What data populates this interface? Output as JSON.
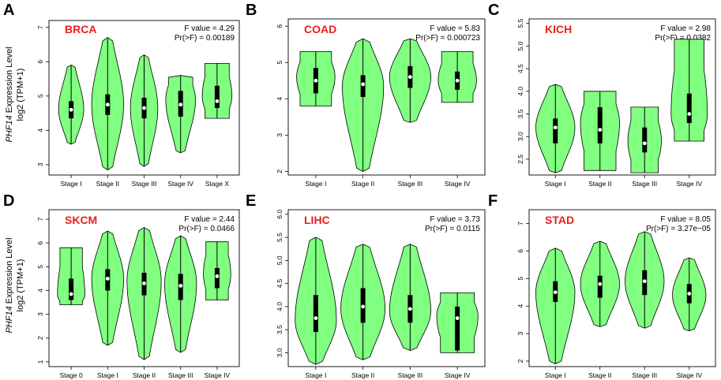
{
  "figure": {
    "ylabel_gene": "PHF14",
    "ylabel_rest": " Expression Level",
    "ylabel_line2": "log2 (TPM+1)",
    "violin_color": "#80ff80",
    "title_color": "#e8201c"
  },
  "chart_data": [
    {
      "type": "violin",
      "letter": "A",
      "title": "BRCA",
      "f_value": "F value = 4.29",
      "p_value": "Pr(>F) = 0.00189",
      "ylabel": "PHF14 Expression Level log2 (TPM+1)",
      "ylim": [
        2.7,
        7.2
      ],
      "yticks": [
        {
          "v": 3,
          "label": "3"
        },
        {
          "v": 4,
          "label": "4"
        },
        {
          "v": 5,
          "label": "5"
        },
        {
          "v": 6,
          "label": "6"
        },
        {
          "v": 7,
          "label": "7"
        }
      ],
      "categories": [
        "Stage I",
        "Stage II",
        "Stage III",
        "Stage IV",
        "Stage X"
      ],
      "violins": [
        {
          "min": 3.6,
          "max": 5.9,
          "q1": 4.35,
          "median": 4.6,
          "q3": 4.85,
          "mode": 4.6,
          "width": 0.55
        },
        {
          "min": 2.85,
          "max": 6.7,
          "q1": 4.45,
          "median": 4.75,
          "q3": 5.05,
          "mode": 4.75,
          "width": 0.7
        },
        {
          "min": 2.95,
          "max": 6.2,
          "q1": 4.35,
          "median": 4.65,
          "q3": 4.95,
          "mode": 4.65,
          "width": 0.6
        },
        {
          "min": 3.35,
          "max": 5.6,
          "q1": 4.4,
          "median": 4.75,
          "q3": 5.15,
          "mode": 4.9,
          "width": 0.65,
          "flat": "top"
        },
        {
          "min": 4.35,
          "max": 5.95,
          "q1": 4.65,
          "median": 4.85,
          "q3": 5.3,
          "mode": 5.0,
          "width": 0.65,
          "flat": "both"
        }
      ]
    },
    {
      "type": "violin",
      "letter": "B",
      "title": "COAD",
      "f_value": "F value = 5.83",
      "p_value": "Pr(>F) = 0.000723",
      "ylim": [
        1.9,
        6.2
      ],
      "yticks": [
        {
          "v": 2,
          "label": "2"
        },
        {
          "v": 3,
          "label": "3"
        },
        {
          "v": 4,
          "label": "4"
        },
        {
          "v": 5,
          "label": "5"
        },
        {
          "v": 6,
          "label": "6"
        }
      ],
      "categories": [
        "Stage I",
        "Stage II",
        "Stage III",
        "Stage IV"
      ],
      "violins": [
        {
          "min": 3.8,
          "max": 5.3,
          "q1": 4.15,
          "median": 4.5,
          "q3": 4.85,
          "mode": 4.6,
          "width": 0.65,
          "flat": "both"
        },
        {
          "min": 2.0,
          "max": 5.65,
          "q1": 4.05,
          "median": 4.4,
          "q3": 4.65,
          "mode": 4.35,
          "width": 0.7
        },
        {
          "min": 3.35,
          "max": 5.65,
          "q1": 4.3,
          "median": 4.6,
          "q3": 4.9,
          "mode": 4.6,
          "width": 0.7
        },
        {
          "min": 3.9,
          "max": 5.3,
          "q1": 4.25,
          "median": 4.5,
          "q3": 4.75,
          "mode": 4.5,
          "width": 0.65,
          "flat": "both"
        }
      ]
    },
    {
      "type": "violin",
      "letter": "C",
      "title": "KICH",
      "f_value": "F value = 2.98",
      "p_value": "Pr(>F) = 0.0382",
      "ylim": [
        2.15,
        5.6
      ],
      "yticks": [
        {
          "v": 2.5,
          "label": "2.5"
        },
        {
          "v": 3.0,
          "label": "3.0"
        },
        {
          "v": 3.5,
          "label": "3.5"
        },
        {
          "v": 4.0,
          "label": "4.0"
        },
        {
          "v": 4.5,
          "label": "4.5"
        },
        {
          "v": 5.0,
          "label": "5.0"
        },
        {
          "v": 5.5,
          "label": "5.5"
        }
      ],
      "categories": [
        "Stage I",
        "Stage II",
        "Stage III",
        "Stage IV"
      ],
      "violins": [
        {
          "min": 2.2,
          "max": 4.15,
          "q1": 2.85,
          "median": 3.2,
          "q3": 3.4,
          "mode": 3.2,
          "width": 0.7
        },
        {
          "min": 2.25,
          "max": 4.0,
          "q1": 2.85,
          "median": 3.15,
          "q3": 3.65,
          "mode": 3.3,
          "width": 0.7,
          "flat": "both"
        },
        {
          "min": 2.2,
          "max": 3.65,
          "q1": 2.65,
          "median": 2.85,
          "q3": 3.2,
          "mode": 2.9,
          "width": 0.6,
          "flat": "both"
        },
        {
          "min": 2.9,
          "max": 5.15,
          "q1": 3.3,
          "median": 3.5,
          "q3": 3.95,
          "mode": 3.5,
          "width": 0.65,
          "flat": "both"
        }
      ]
    },
    {
      "type": "violin",
      "letter": "D",
      "title": "SKCM",
      "f_value": "F value = 2.44",
      "p_value": "Pr(>F) = 0.0466",
      "ylim": [
        0.8,
        7.4
      ],
      "yticks": [
        {
          "v": 1,
          "label": "1"
        },
        {
          "v": 2,
          "label": "2"
        },
        {
          "v": 3,
          "label": "3"
        },
        {
          "v": 4,
          "label": "4"
        },
        {
          "v": 5,
          "label": "5"
        },
        {
          "v": 6,
          "label": "6"
        },
        {
          "v": 7,
          "label": "7"
        }
      ],
      "categories": [
        "Stage 0",
        "Stage I",
        "Stage II",
        "Stage III",
        "Stage IV"
      ],
      "violins": [
        {
          "min": 3.4,
          "max": 5.8,
          "q1": 3.6,
          "median": 3.85,
          "q3": 4.5,
          "mode": 3.8,
          "width": 0.6,
          "flat": "both"
        },
        {
          "min": 1.7,
          "max": 6.5,
          "q1": 4.0,
          "median": 4.5,
          "q3": 4.9,
          "mode": 4.5,
          "width": 0.7
        },
        {
          "min": 1.1,
          "max": 6.65,
          "q1": 3.8,
          "median": 4.3,
          "q3": 4.75,
          "mode": 4.4,
          "width": 0.75
        },
        {
          "min": 1.4,
          "max": 6.3,
          "q1": 3.6,
          "median": 4.2,
          "q3": 4.7,
          "mode": 4.3,
          "width": 0.7
        },
        {
          "min": 3.6,
          "max": 6.05,
          "q1": 4.1,
          "median": 4.6,
          "q3": 4.95,
          "mode": 4.7,
          "width": 0.6,
          "flat": "both"
        }
      ]
    },
    {
      "type": "violin",
      "letter": "E",
      "title": "LIHC",
      "f_value": "F value = 3.73",
      "p_value": "Pr(>F) = 0.0115",
      "ylim": [
        2.7,
        6.1
      ],
      "yticks": [
        {
          "v": 3.0,
          "label": "3.0"
        },
        {
          "v": 3.5,
          "label": "3.5"
        },
        {
          "v": 4.0,
          "label": "4.0"
        },
        {
          "v": 4.5,
          "label": "4.5"
        },
        {
          "v": 5.0,
          "label": "5.0"
        },
        {
          "v": 5.5,
          "label": "5.5"
        },
        {
          "v": 6.0,
          "label": "6.0"
        }
      ],
      "categories": [
        "Stage I",
        "Stage II",
        "Stage III",
        "Stage IV"
      ],
      "violins": [
        {
          "min": 2.75,
          "max": 5.5,
          "q1": 3.45,
          "median": 3.75,
          "q3": 4.25,
          "mode": 3.7,
          "width": 0.7
        },
        {
          "min": 2.85,
          "max": 5.35,
          "q1": 3.65,
          "median": 4.0,
          "q3": 4.4,
          "mode": 3.95,
          "width": 0.75
        },
        {
          "min": 3.05,
          "max": 5.35,
          "q1": 3.65,
          "median": 3.95,
          "q3": 4.25,
          "mode": 3.9,
          "width": 0.7
        },
        {
          "min": 3.0,
          "max": 4.3,
          "q1": 3.05,
          "median": 3.75,
          "q3": 4.0,
          "mode": 3.8,
          "width": 0.7,
          "flat": "both"
        }
      ]
    },
    {
      "type": "violin",
      "letter": "F",
      "title": "STAD",
      "f_value": "F value = 8.05",
      "p_value": "Pr(>F) = 3.27e−05",
      "ylim": [
        1.8,
        7.5
      ],
      "yticks": [
        {
          "v": 2,
          "label": "2"
        },
        {
          "v": 3,
          "label": "3"
        },
        {
          "v": 4,
          "label": "4"
        },
        {
          "v": 5,
          "label": "5"
        },
        {
          "v": 6,
          "label": "6"
        },
        {
          "v": 7,
          "label": "7"
        }
      ],
      "categories": [
        "Stage I",
        "Stage II",
        "Stage III",
        "Stage IV"
      ],
      "violins": [
        {
          "min": 1.9,
          "max": 6.1,
          "q1": 4.15,
          "median": 4.5,
          "q3": 4.9,
          "mode": 4.5,
          "width": 0.7
        },
        {
          "min": 3.25,
          "max": 6.35,
          "q1": 4.3,
          "median": 4.8,
          "q3": 5.1,
          "mode": 4.8,
          "width": 0.7
        },
        {
          "min": 3.2,
          "max": 6.7,
          "q1": 4.4,
          "median": 4.9,
          "q3": 5.3,
          "mode": 4.9,
          "width": 0.7
        },
        {
          "min": 3.1,
          "max": 5.75,
          "q1": 4.1,
          "median": 4.45,
          "q3": 4.8,
          "mode": 4.4,
          "width": 0.6
        }
      ]
    }
  ]
}
